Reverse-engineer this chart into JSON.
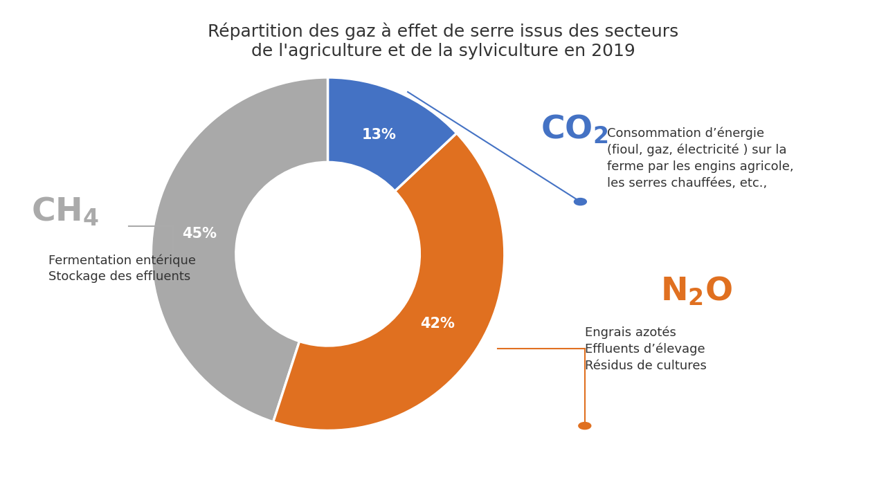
{
  "title": "Répartition des gaz à effet de serre issus des secteurs\nde l'agriculture et de la sylviculture en 2019",
  "wedge_sizes": [
    45,
    42,
    13
  ],
  "wedge_colors": [
    "#A9A9A9",
    "#E07020",
    "#4472C4"
  ],
  "pct_labels": [
    "45%",
    "42%",
    "13%"
  ],
  "gas_co2": "CO₂",
  "gas_n2o": "N₂O",
  "gas_ch4": "CH₄",
  "color_co2": "#4472C4",
  "color_n2o": "#E07020",
  "color_ch4": "#AAAAAA",
  "desc_co2": "Consommation d’énergie\n(fioul, gaz, électricité ) sur la\nferme par les engins agricole,\nles serres chauffées, etc.,",
  "desc_n2o": "Engrais azotés\nEffluents d’élevage\nRésidus de cultures",
  "desc_ch4": "Fermentation entérique\nStockage des effluents",
  "background_color": "#FFFFFF",
  "title_fontsize": 18,
  "pct_fontsize": 15,
  "gas_label_fontsize": 34,
  "desc_fontsize": 13,
  "startangle": 90
}
